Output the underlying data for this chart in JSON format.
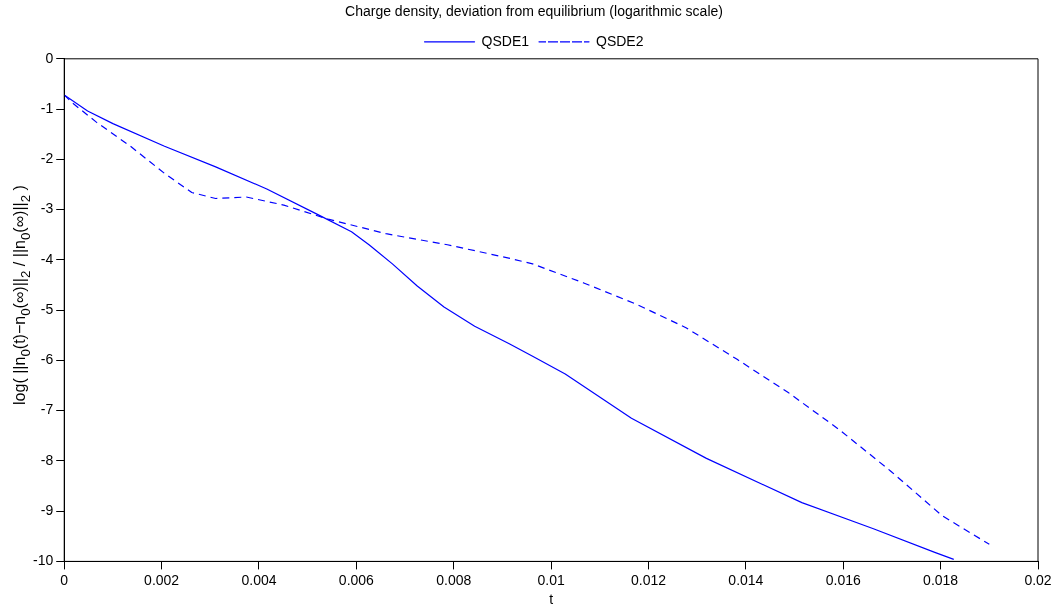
{
  "chart_data": {
    "type": "line",
    "title": "Charge density, deviation from equilibrium (logarithmic scale)",
    "xlabel": "t",
    "ylabel": "log( ||n$_{0}$(t)−n$_{0}$(∞)||$_{2}$ / ||n$_{0}$(∞)||$_{2}$ )",
    "xlim": [
      0,
      0.02
    ],
    "xticks": [
      0,
      0.002,
      0.004,
      0.006,
      0.008,
      0.01,
      0.012,
      0.014,
      0.016,
      0.018,
      0.02
    ],
    "ylim": [
      -10,
      0
    ],
    "yticks": [
      -10,
      -9,
      -8,
      -7,
      -6,
      -5,
      -4,
      -3,
      -2,
      -1,
      0
    ],
    "grid": false,
    "legend": "top",
    "marker": "none",
    "series": [
      {
        "name": "QSDE1",
        "color": "#0000ff",
        "line_style": "solid",
        "x": [
          0,
          0.00048,
          0.001,
          0.00206,
          0.00311,
          0.00416,
          0.00521,
          0.0059,
          0.00626,
          0.00674,
          0.00725,
          0.0078,
          0.00843,
          0.00914,
          0.00962,
          0.01029,
          0.01165,
          0.01319,
          0.01515,
          0.01662,
          0.01788,
          0.01827
        ],
        "values": [
          -0.72,
          -1.04,
          -1.29,
          -1.74,
          -2.15,
          -2.59,
          -3.1,
          -3.44,
          -3.7,
          -4.08,
          -4.52,
          -4.94,
          -5.32,
          -5.67,
          -5.92,
          -6.27,
          -7.15,
          -7.95,
          -8.83,
          -9.35,
          -9.82,
          -9.96
        ]
      },
      {
        "name": "QSDE2",
        "color": "#0000ff",
        "line_style": "dashed",
        "x": [
          0,
          0.00017,
          0.00066,
          0.00136,
          0.00206,
          0.00262,
          0.00311,
          0.00374,
          0.00451,
          0.00542,
          0.00661,
          0.00787,
          0.00906,
          0.00962,
          0.01067,
          0.01172,
          0.01277,
          0.01382,
          0.01487,
          0.01592,
          0.01697,
          0.01803,
          0.019
        ],
        "values": [
          -0.72,
          -0.88,
          -1.26,
          -1.74,
          -2.28,
          -2.66,
          -2.78,
          -2.75,
          -2.91,
          -3.19,
          -3.48,
          -3.7,
          -3.95,
          -4.08,
          -4.46,
          -4.87,
          -5.35,
          -5.98,
          -6.64,
          -7.38,
          -8.2,
          -9.09,
          -9.66
        ]
      }
    ]
  }
}
